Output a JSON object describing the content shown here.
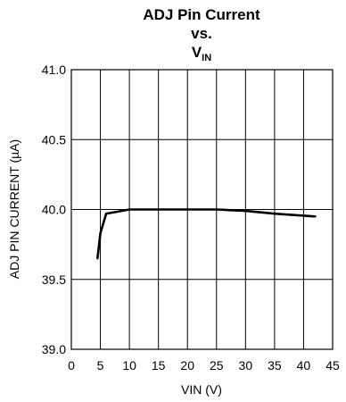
{
  "chart_data": {
    "type": "line",
    "title_lines": [
      "ADJ Pin Current",
      "vs."
    ],
    "title_symbol": "V",
    "title_symbol_subscript": "IN",
    "xlabel": "VIN (V)",
    "ylabel": "ADJ PIN CURRENT (µA)",
    "xlim": [
      0,
      45
    ],
    "ylim": [
      39.0,
      41.0
    ],
    "x_ticks": [
      "0",
      "5",
      "10",
      "15",
      "20",
      "25",
      "30",
      "35",
      "40",
      "45"
    ],
    "y_ticks": [
      "41.0",
      "40.5",
      "40.0",
      "39.5",
      "39.0"
    ],
    "grid": true,
    "series": [
      {
        "x": [
          4.5,
          5.0,
          6.0,
          10.0,
          15.0,
          20.0,
          25.0,
          30.0,
          35.0,
          42.0
        ],
        "y": [
          39.65,
          39.83,
          39.97,
          40.0,
          40.0,
          40.0,
          40.0,
          39.99,
          39.97,
          39.95
        ]
      }
    ],
    "line_color": "#000000"
  }
}
